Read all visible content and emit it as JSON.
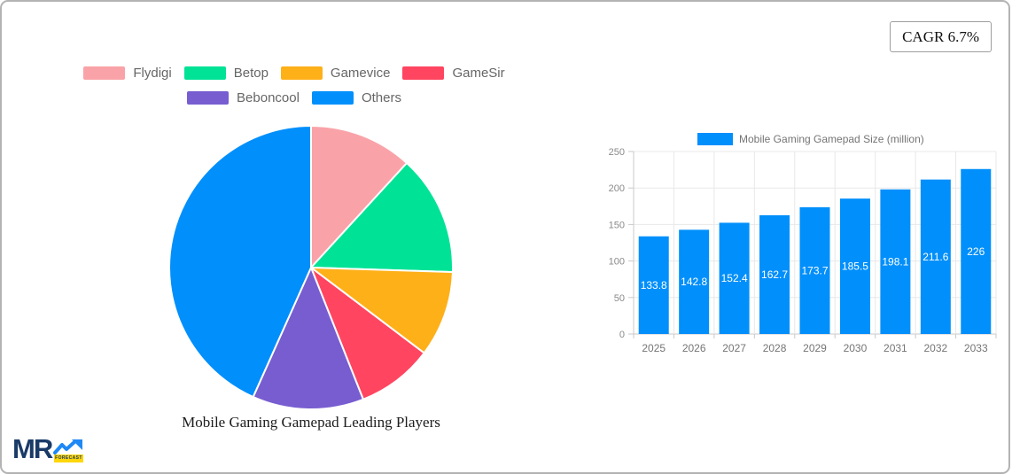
{
  "header": {
    "cagr_label": "CAGR 6.7%"
  },
  "logo": {
    "mr_text": "MR",
    "forecast_text": "FORECAST",
    "navy": "#1a3a67",
    "blue": "#1e88f5",
    "yellow": "#ffd60a"
  },
  "colors": {
    "card_border": "#b3b3b3",
    "legend_text": "#666666",
    "axis_text": "#8a8a8a",
    "category_text": "#757575",
    "grid_line": "#e8e8e8",
    "axis_line": "#c9c9c9",
    "bar_value_text": "#ffffff"
  },
  "chart_data": [
    {
      "type": "pie",
      "title": "Mobile Gaming Gamepad Leading Players",
      "legend_position": "top",
      "labels": [
        "Flydigi",
        "Betop",
        "Gamevice",
        "GameSir",
        "Beboncool",
        "Others"
      ],
      "values_percent_estimated": [
        11.8,
        13.7,
        9.8,
        8.7,
        12.7,
        43.3
      ],
      "colors": [
        "#f9a3a8",
        "#00e396",
        "#feb019",
        "#ff4560",
        "#775dd0",
        "#008ffb"
      ],
      "slice_border_color": "#ffffff"
    },
    {
      "type": "bar",
      "legend_label": "Mobile Gaming Gamepad Size (million)",
      "legend_position": "top",
      "categories": [
        "2025",
        "2026",
        "2027",
        "2028",
        "2029",
        "2030",
        "2031",
        "2032",
        "2033"
      ],
      "values": [
        133.8,
        142.8,
        152.4,
        162.7,
        173.7,
        185.5,
        198.1,
        211.6,
        226
      ],
      "value_labels": [
        "133.8",
        "142.8",
        "152.4",
        "162.7",
        "173.7",
        "185.5",
        "198.1",
        "211.6",
        "226"
      ],
      "ylim": [
        0,
        250
      ],
      "yticks": [
        0,
        50,
        100,
        150,
        200,
        250
      ],
      "grid": true,
      "bar_color": "#008ffb"
    }
  ]
}
